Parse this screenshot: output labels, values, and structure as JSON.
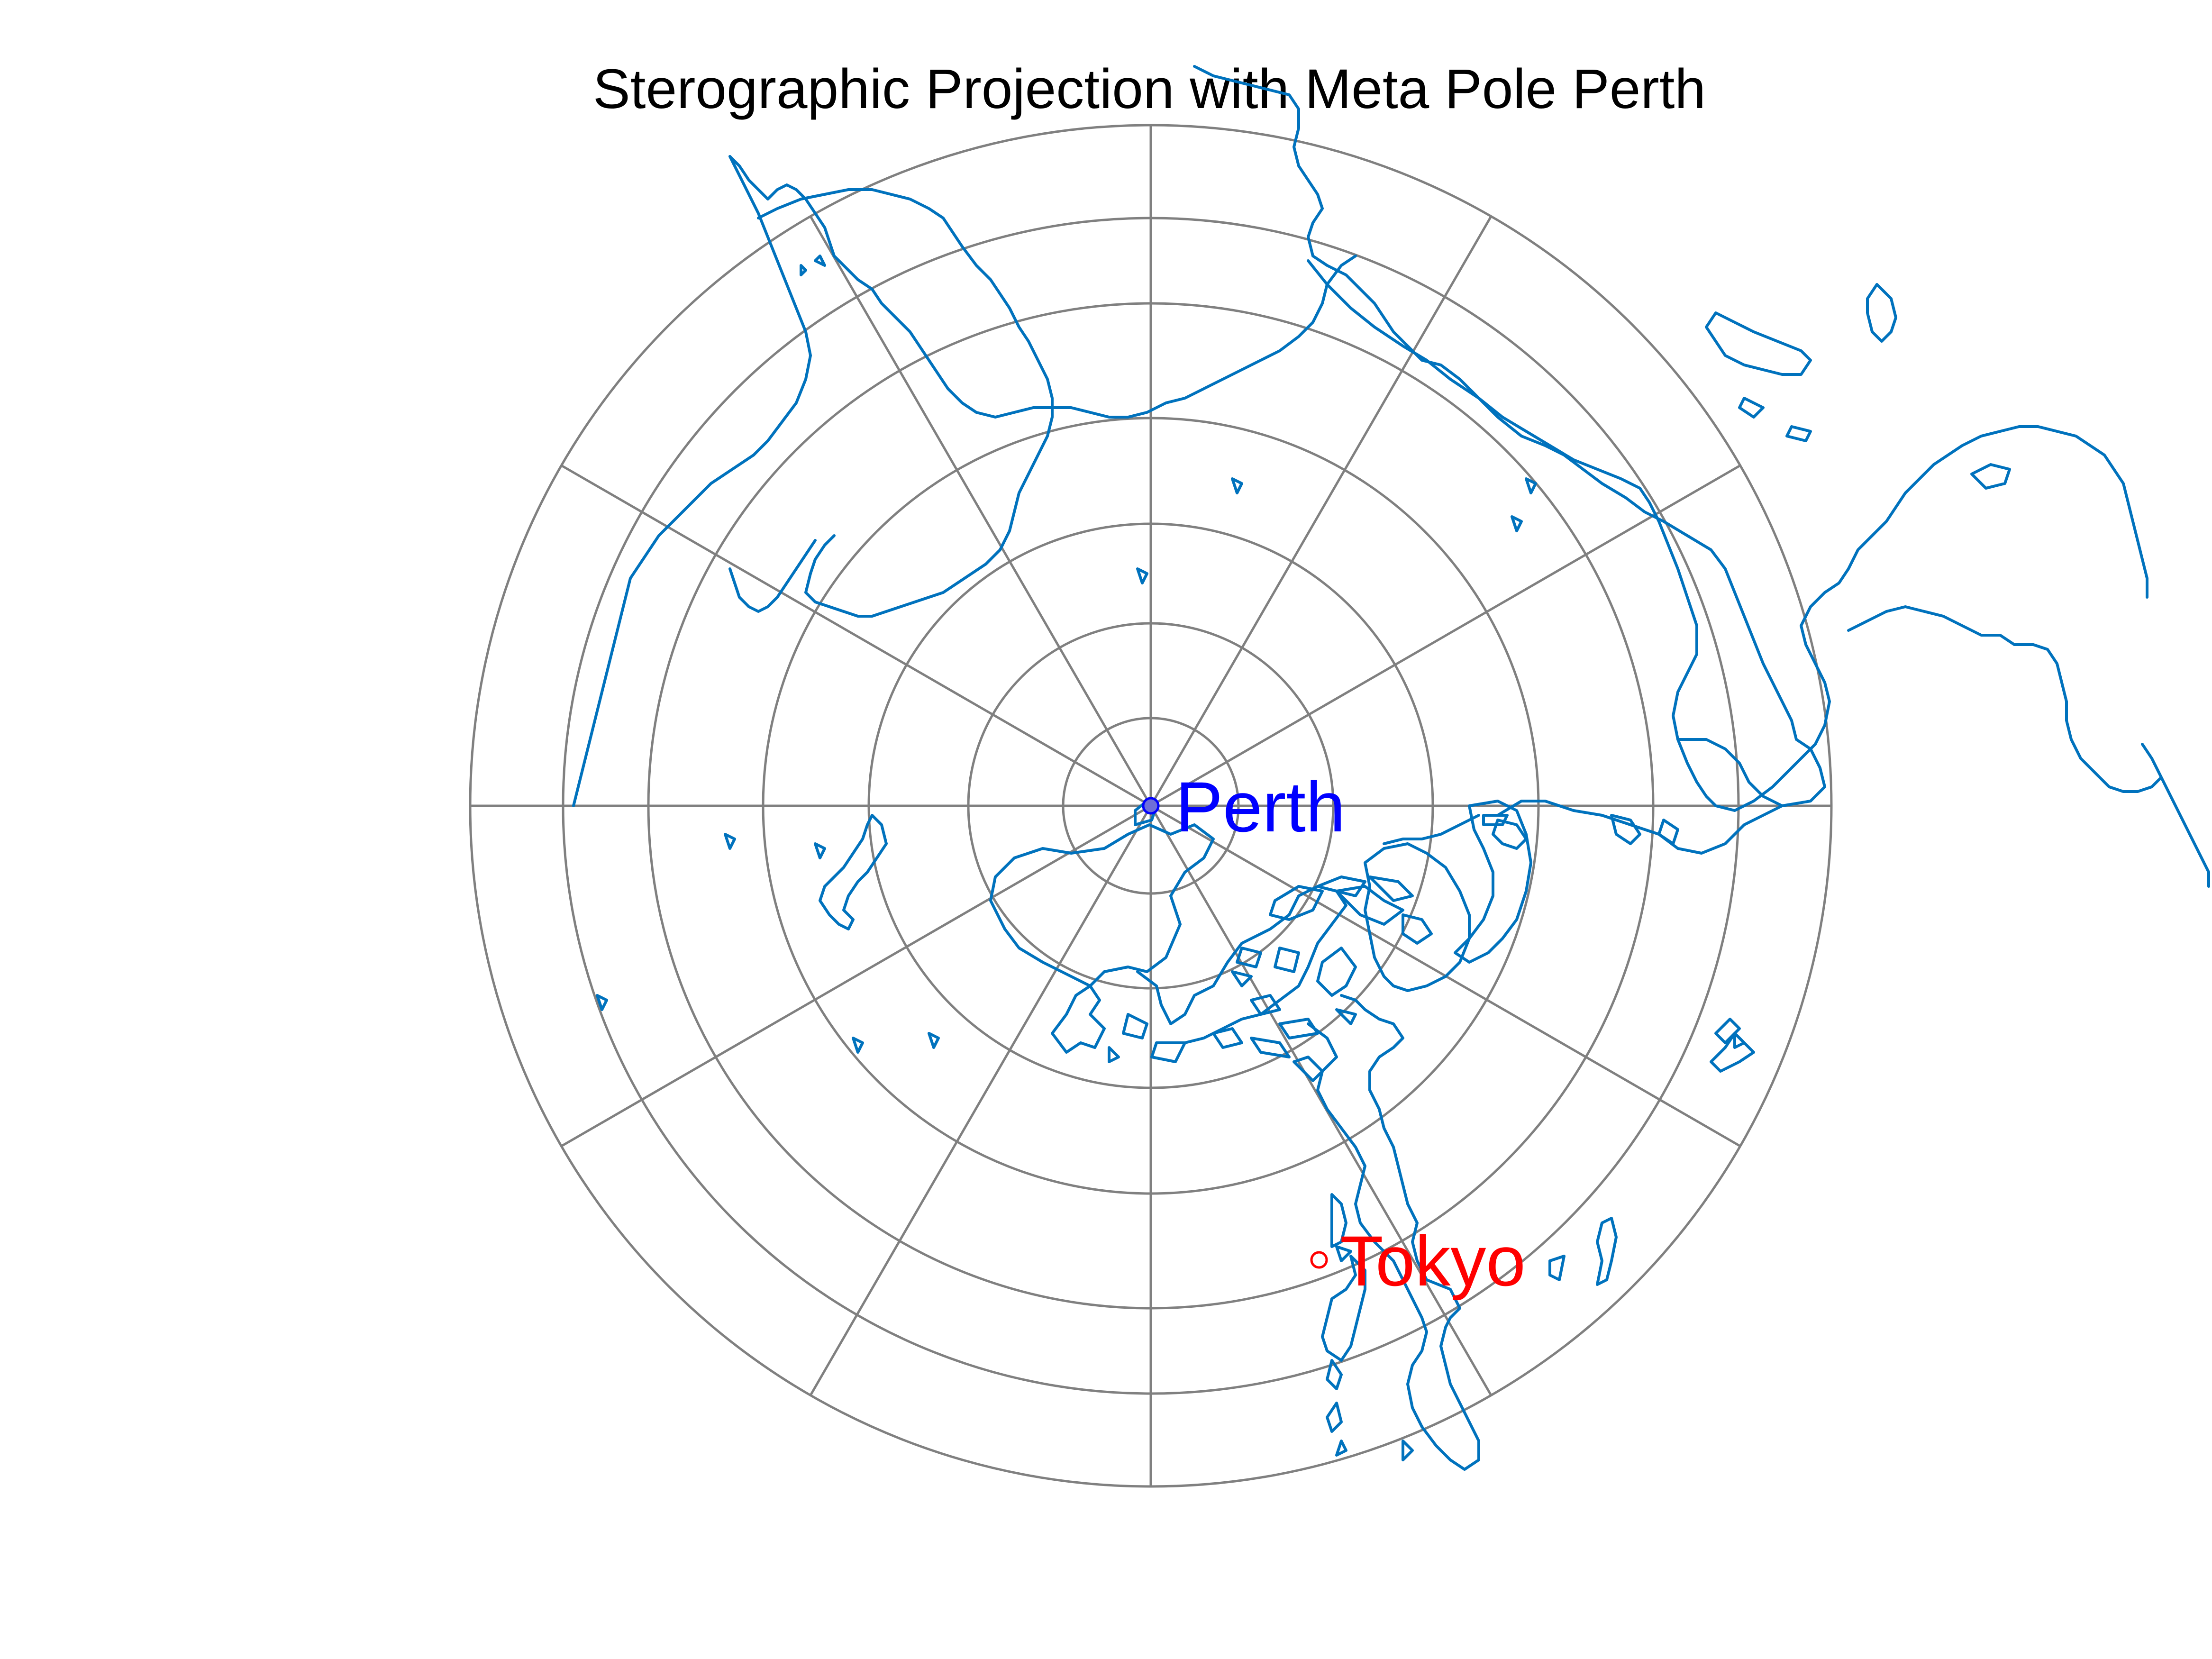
{
  "map": {
    "title": "Sterographic Projection with Meta Pole Perth",
    "projection": "stereographic",
    "meta_pole": "Perth",
    "colors": {
      "background": "#ffffff",
      "grid": "#808080",
      "coastline": "#0072BD",
      "perth_marker": "#0000FF",
      "tokyo_marker": "#FF0000",
      "title": "#000000"
    },
    "points": [
      {
        "name": "Perth",
        "color": "#0000FF",
        "filled": true
      },
      {
        "name": "Tokyo",
        "color": "#FF0000",
        "filled": false
      }
    ],
    "rings": 7,
    "meridian_spokes": 12
  }
}
